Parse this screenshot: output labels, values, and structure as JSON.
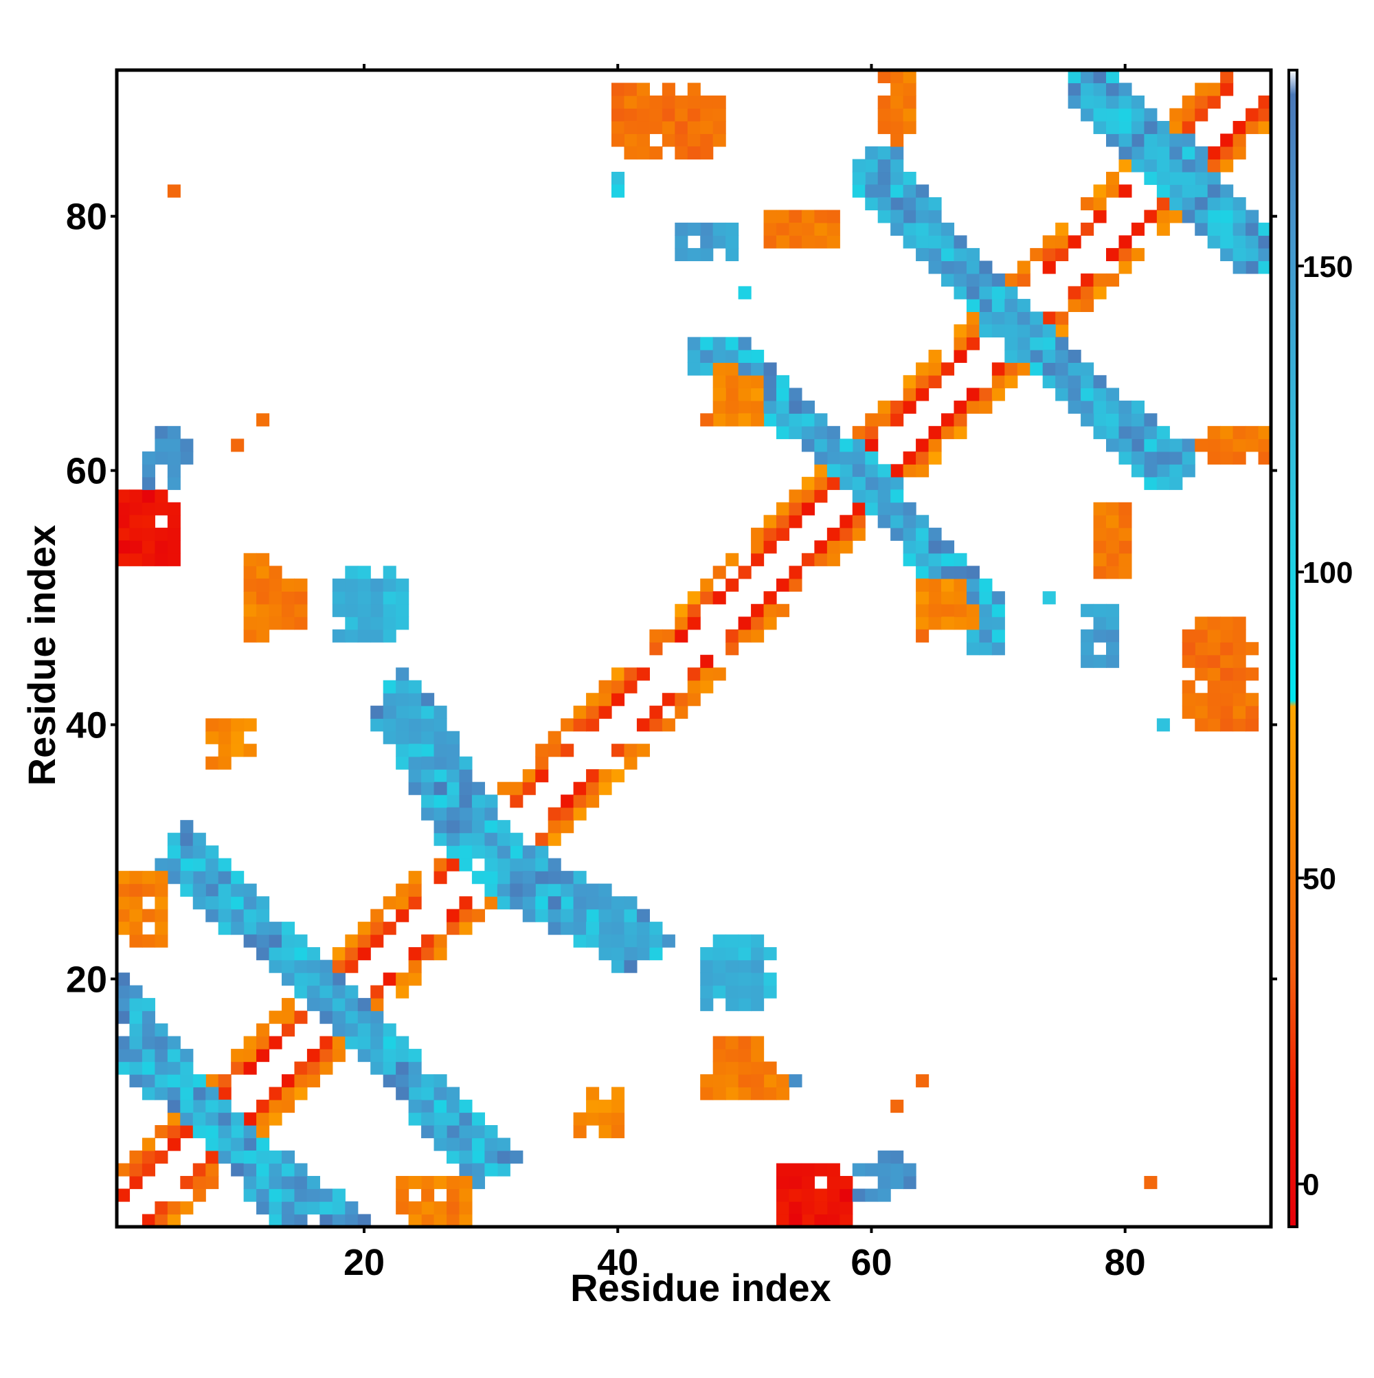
{
  "chart_data": {
    "type": "heatmap",
    "title": "",
    "xlabel": "Residue index",
    "ylabel": "Residue index",
    "xlim": [
      0.5,
      91.5
    ],
    "ylim": [
      0.5,
      91.5
    ],
    "x_ticks": [
      20,
      40,
      60,
      80
    ],
    "y_ticks": [
      20,
      40,
      60,
      80
    ],
    "grid": false,
    "legend": "none",
    "colorbar": {
      "placement": "right",
      "range": [
        -7,
        182
      ],
      "ticks": [
        0,
        50,
        100,
        150
      ],
      "stops": [
        {
          "value": -7,
          "color": "#e6000a"
        },
        {
          "value": 15,
          "color": "#f01e00"
        },
        {
          "value": 35,
          "color": "#f25f0f"
        },
        {
          "value": 60,
          "color": "#f78a00"
        },
        {
          "value": 78,
          "color": "#ffa500"
        },
        {
          "value": 79,
          "color": "#00e5ee"
        },
        {
          "value": 110,
          "color": "#2bc8e0"
        },
        {
          "value": 155,
          "color": "#4596cc"
        },
        {
          "value": 178,
          "color": "#4a78b8"
        },
        {
          "value": 182,
          "color": "#ffffff"
        }
      ]
    },
    "bands": [
      {
        "name": "diagonal",
        "points": [
          [
            1,
            1
          ],
          [
            91,
            91
          ]
        ],
        "center": 0,
        "half_width": 3.2,
        "value_kind": "near"
      },
      {
        "name": "cross-1",
        "points": [
          [
            1,
            14
          ],
          [
            20,
            0
          ]
        ],
        "half_width": 1.4,
        "value_kind": "far"
      },
      {
        "name": "cross-1b",
        "points": [
          [
            6,
            31
          ],
          [
            18,
            17
          ]
        ],
        "half_width": 1.4,
        "value_kind": "far"
      },
      {
        "name": "cross-2",
        "points": [
          [
            14,
            23
          ],
          [
            29,
            5
          ]
        ],
        "half_width": 1.4,
        "value_kind": "far"
      },
      {
        "name": "cross-3",
        "points": [
          [
            23,
            43
          ],
          [
            31,
            30
          ]
        ],
        "half_width": 1.4,
        "value_kind": "far"
      },
      {
        "name": "cross-3b",
        "points": [
          [
            30,
            28
          ],
          [
            41,
            22
          ]
        ],
        "half_width": 1.4,
        "value_kind": "far"
      },
      {
        "name": "cross-4",
        "points": [
          [
            47,
            69
          ],
          [
            58,
            61
          ]
        ],
        "half_width": 1.5,
        "value_kind": "far"
      },
      {
        "name": "cross-4b",
        "points": [
          [
            60,
            59
          ],
          [
            69,
            49
          ]
        ],
        "half_width": 1.5,
        "value_kind": "far"
      },
      {
        "name": "cross-5",
        "points": [
          [
            61,
            84
          ],
          [
            70,
            72
          ]
        ],
        "half_width": 1.5,
        "value_kind": "far"
      },
      {
        "name": "cross-5b",
        "points": [
          [
            71,
            72
          ],
          [
            83,
            60
          ]
        ],
        "half_width": 1.5,
        "value_kind": "far"
      },
      {
        "name": "cross-6",
        "points": [
          [
            77,
            91
          ],
          [
            84,
            85
          ]
        ],
        "half_width": 1.5,
        "value_kind": "far"
      },
      {
        "name": "cross-6b",
        "points": [
          [
            83,
            84
          ],
          [
            90,
            77
          ]
        ],
        "half_width": 1.5,
        "value_kind": "far"
      }
    ],
    "patches": [
      {
        "x": [
          1,
          5
        ],
        "y": [
          53,
          58
        ],
        "value": 5
      },
      {
        "x": [
          4,
          6
        ],
        "y": [
          61,
          63
        ],
        "value": 165
      },
      {
        "x": [
          11,
          13
        ],
        "y": [
          47,
          53
        ],
        "value": 55
      },
      {
        "x": [
          18,
          23
        ],
        "y": [
          47,
          52
        ],
        "value": 120
      },
      {
        "x": [
          9,
          11
        ],
        "y": [
          38,
          40
        ],
        "value": 60
      },
      {
        "x": [
          1,
          4
        ],
        "y": [
          25,
          28
        ],
        "value": 45
      },
      {
        "x": [
          22,
          26
        ],
        "y": [
          39,
          42
        ],
        "value": 140
      },
      {
        "x": [
          47,
          51
        ],
        "y": [
          18,
          22
        ],
        "value": 140
      },
      {
        "x": [
          48,
          51
        ],
        "y": [
          11,
          15
        ],
        "value": 50
      },
      {
        "x": [
          37,
          40
        ],
        "y": [
          8,
          10
        ],
        "value": 60
      },
      {
        "x": [
          23,
          28
        ],
        "y": [
          1,
          4
        ],
        "value": 55
      },
      {
        "x": [
          53,
          57
        ],
        "y": [
          1,
          5
        ],
        "value": 5
      },
      {
        "x": [
          59,
          62
        ],
        "y": [
          3,
          5
        ],
        "value": 160
      },
      {
        "x": [
          40,
          47
        ],
        "y": [
          86,
          90
        ],
        "value": 45
      },
      {
        "x": [
          61,
          63
        ],
        "y": [
          87,
          91
        ],
        "value": 50
      },
      {
        "x": [
          48,
          51
        ],
        "y": [
          64,
          68
        ],
        "value": 60
      },
      {
        "x": [
          52,
          56
        ],
        "y": [
          78,
          80
        ],
        "value": 45
      },
      {
        "x": [
          47,
          49
        ],
        "y": [
          77,
          79
        ],
        "value": 140
      },
      {
        "x": [
          78,
          80
        ],
        "y": [
          52,
          57
        ],
        "value": 50
      },
      {
        "x": [
          85,
          89
        ],
        "y": [
          40,
          48
        ],
        "value": 45
      },
      {
        "x": [
          86,
          90
        ],
        "y": [
          62,
          63
        ],
        "value": 50
      },
      {
        "x": [
          77,
          79
        ],
        "y": [
          45,
          47
        ],
        "value": 150
      },
      {
        "x": [
          82,
          83
        ],
        "y": [
          40,
          40
        ],
        "value": 120
      },
      {
        "x": [
          65,
          67
        ],
        "y": [
          48,
          50
        ],
        "value": 55
      }
    ],
    "singles": [
      [
        5,
        82,
        40
      ],
      [
        12,
        64,
        45
      ],
      [
        10,
        62,
        40
      ],
      [
        40,
        82,
        100
      ],
      [
        50,
        74,
        100
      ],
      [
        64,
        12,
        40
      ],
      [
        62,
        10,
        40
      ],
      [
        82,
        4,
        40
      ],
      [
        74,
        50,
        110
      ],
      [
        47,
        64,
        40
      ],
      [
        64,
        47,
        40
      ],
      [
        54,
        12,
        160
      ]
    ]
  }
}
